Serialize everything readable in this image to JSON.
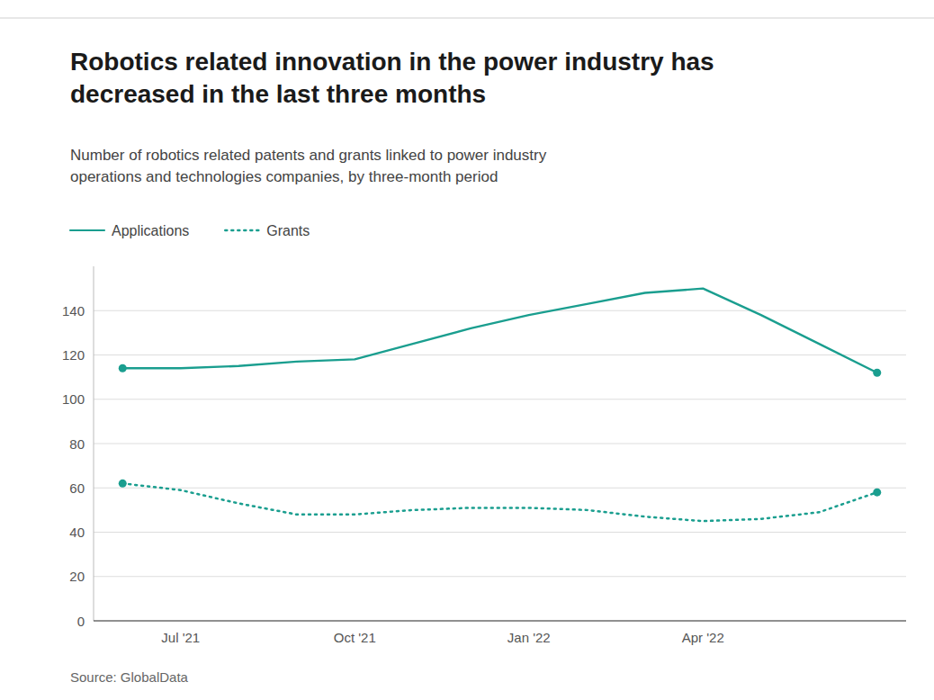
{
  "chart_data": {
    "type": "line",
    "title": "Robotics related innovation in the power industry has\ndecreased in the last three months",
    "subtitle": "Number of robotics related patents and grants linked to power industry\noperations and technologies companies, by three-month period",
    "source": "Source: GlobalData",
    "categories": [
      null,
      "Jul '21",
      null,
      null,
      "Oct '21",
      null,
      null,
      "Jan '22",
      null,
      null,
      "Apr '22",
      null,
      null,
      null
    ],
    "series": [
      {
        "name": "Applications",
        "color": "#1a9e8f",
        "line_style": "solid",
        "values": [
          114,
          114,
          115,
          117,
          118,
          125,
          132,
          138,
          143,
          148,
          150,
          138,
          125,
          112
        ]
      },
      {
        "name": "Grants",
        "color": "#1a9e8f",
        "line_style": "dotted",
        "values": [
          62,
          59,
          53,
          48,
          48,
          50,
          51,
          51,
          50,
          47,
          45,
          46,
          49,
          58
        ]
      }
    ],
    "ylim": [
      0,
      160
    ],
    "yticks": [
      0,
      20,
      40,
      60,
      80,
      100,
      120,
      140
    ],
    "grid": true,
    "legend": "top"
  }
}
